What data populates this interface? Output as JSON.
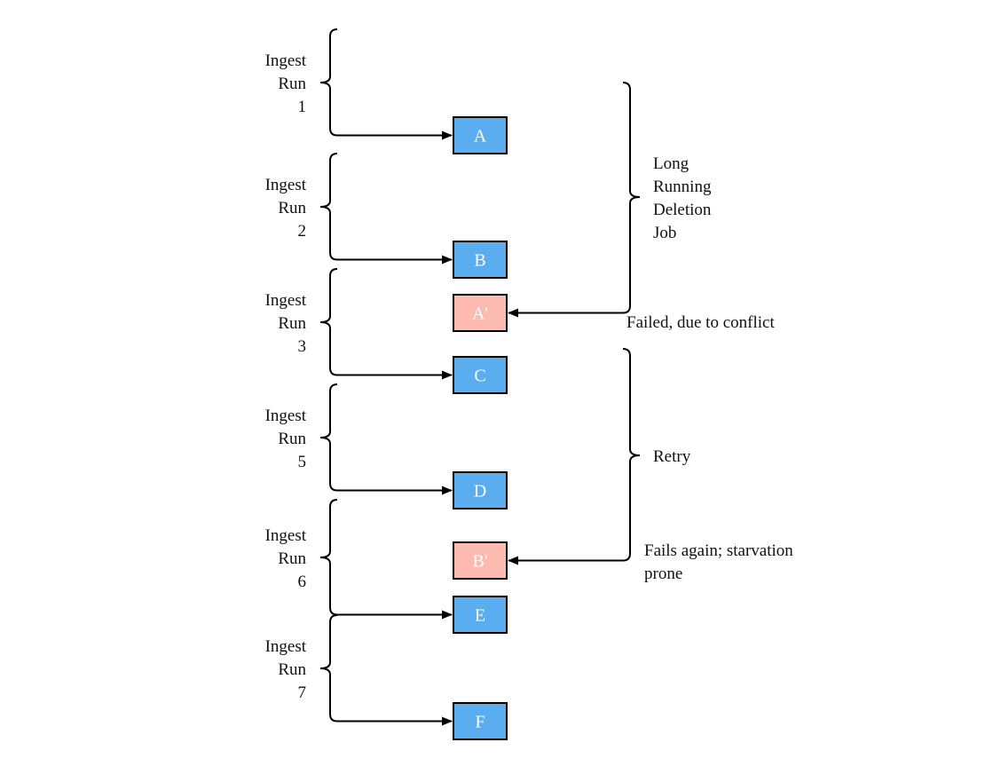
{
  "colors": {
    "normal": "#5aaef0",
    "failed": "#fdbab0",
    "stroke": "#000000"
  },
  "ingest_runs": [
    {
      "lines": [
        "Ingest",
        "Run",
        "1"
      ],
      "target": "A"
    },
    {
      "lines": [
        "Ingest",
        "Run",
        "2"
      ],
      "target": "B"
    },
    {
      "lines": [
        "Ingest",
        "Run",
        "3"
      ],
      "target": "C"
    },
    {
      "lines": [
        "Ingest",
        "Run",
        "5"
      ],
      "target": "D"
    },
    {
      "lines": [
        "Ingest",
        "Run",
        "6"
      ],
      "target": "E"
    },
    {
      "lines": [
        "Ingest",
        "Run",
        "7"
      ],
      "target": "F"
    }
  ],
  "nodes": [
    {
      "id": "A",
      "label": "A",
      "status": "normal"
    },
    {
      "id": "B",
      "label": "B",
      "status": "normal"
    },
    {
      "id": "A2",
      "label": "A'",
      "status": "failed"
    },
    {
      "id": "C",
      "label": "C",
      "status": "normal"
    },
    {
      "id": "D",
      "label": "D",
      "status": "normal"
    },
    {
      "id": "B2",
      "label": "B'",
      "status": "failed"
    },
    {
      "id": "E",
      "label": "E",
      "status": "normal"
    },
    {
      "id": "F",
      "label": "F",
      "status": "normal"
    }
  ],
  "jobs": [
    {
      "lines": [
        "Long",
        "Running",
        "Deletion",
        "Job"
      ],
      "target": "A2",
      "outcome": [
        "Failed, due to conflict"
      ]
    },
    {
      "lines": [
        "Retry"
      ],
      "target": "B2",
      "outcome": [
        "Fails again; starvation",
        "prone"
      ]
    }
  ]
}
